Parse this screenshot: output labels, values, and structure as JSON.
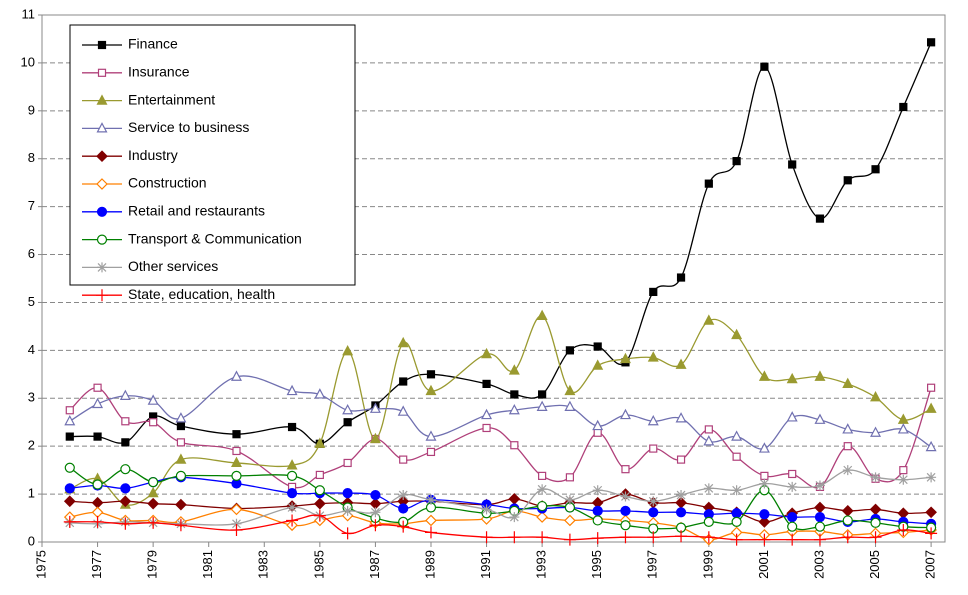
{
  "chart_data": {
    "type": "line",
    "x": [
      1976,
      1977,
      1978,
      1979,
      1980,
      1982,
      1984,
      1985,
      1986,
      1987,
      1988,
      1989,
      1991,
      1992,
      1993,
      1994,
      1995,
      1996,
      1997,
      1998,
      1999,
      2000,
      2001,
      2002,
      2003,
      2004,
      2005,
      2006,
      2007
    ],
    "xlim": [
      1975,
      2007.5
    ],
    "xticks": [
      1975,
      1977,
      1979,
      1981,
      1983,
      1985,
      1987,
      1989,
      1991,
      1993,
      1995,
      1997,
      1999,
      2001,
      2003,
      2005,
      2007
    ],
    "ylim": [
      0,
      11
    ],
    "yticks": [
      0,
      1,
      2,
      3,
      4,
      5,
      6,
      7,
      8,
      9,
      10,
      11
    ],
    "grid": true,
    "legend": "upper left",
    "series": [
      {
        "name": "Finance",
        "color": "#000000",
        "marker": "square",
        "filled": true,
        "values": [
          2.2,
          2.2,
          2.08,
          2.62,
          2.42,
          2.25,
          2.4,
          2.05,
          2.5,
          2.85,
          3.35,
          3.5,
          3.3,
          3.08,
          3.08,
          4.0,
          4.08,
          3.75,
          5.22,
          5.52,
          7.48,
          7.95,
          9.92,
          7.88,
          6.75,
          7.55,
          7.78,
          9.08,
          10.43
        ]
      },
      {
        "name": "Insurance",
        "color": "#b0407a",
        "marker": "square",
        "filled": false,
        "values": [
          2.75,
          3.22,
          2.52,
          2.5,
          2.08,
          1.9,
          1.15,
          1.4,
          1.65,
          2.15,
          1.72,
          1.88,
          2.38,
          2.02,
          1.38,
          1.35,
          2.28,
          1.52,
          1.95,
          1.72,
          2.35,
          1.78,
          1.38,
          1.42,
          1.15,
          2.0,
          1.32,
          1.5,
          3.22
        ]
      },
      {
        "name": "Entertainment",
        "color": "#9a9a30",
        "marker": "triangle",
        "filled": true,
        "values": [
          1.1,
          1.32,
          0.78,
          1.02,
          1.72,
          1.65,
          1.6,
          2.05,
          3.98,
          2.15,
          4.15,
          3.15,
          3.92,
          3.58,
          4.72,
          3.15,
          3.68,
          3.82,
          3.85,
          3.7,
          4.62,
          4.32,
          3.45,
          3.4,
          3.45,
          3.3,
          3.02,
          2.55,
          2.78
        ]
      },
      {
        "name": "Service to business",
        "color": "#7070b0",
        "marker": "triangle",
        "filled": false,
        "values": [
          2.52,
          2.88,
          3.05,
          2.95,
          2.58,
          3.45,
          3.15,
          3.08,
          2.75,
          2.78,
          2.72,
          2.2,
          2.65,
          2.75,
          2.82,
          2.82,
          2.42,
          2.65,
          2.52,
          2.58,
          2.1,
          2.2,
          1.95,
          2.6,
          2.55,
          2.35,
          2.28,
          2.35,
          1.98
        ]
      },
      {
        "name": "Industry",
        "color": "#800000",
        "marker": "diamond",
        "filled": true,
        "values": [
          0.85,
          0.82,
          0.85,
          0.8,
          0.78,
          0.7,
          0.75,
          0.8,
          0.82,
          0.8,
          0.85,
          0.85,
          0.78,
          0.9,
          0.75,
          0.82,
          0.82,
          1.0,
          0.82,
          0.82,
          0.72,
          0.62,
          0.42,
          0.6,
          0.72,
          0.65,
          0.68,
          0.6,
          0.62
        ]
      },
      {
        "name": "Construction",
        "color": "#ff8000",
        "marker": "diamond",
        "filled": false,
        "values": [
          0.52,
          0.62,
          0.45,
          0.45,
          0.42,
          0.68,
          0.35,
          0.45,
          0.55,
          0.4,
          0.38,
          0.45,
          0.48,
          0.65,
          0.52,
          0.45,
          0.48,
          0.45,
          0.4,
          0.3,
          0.05,
          0.2,
          0.15,
          0.22,
          0.22,
          0.15,
          0.18,
          0.2,
          0.25
        ]
      },
      {
        "name": "Retail and restaurants",
        "color": "#0000ff",
        "marker": "circle",
        "filled": true,
        "values": [
          1.12,
          1.18,
          1.12,
          1.25,
          1.35,
          1.22,
          1.02,
          1.02,
          1.02,
          0.98,
          0.7,
          0.88,
          0.78,
          0.7,
          0.7,
          0.72,
          0.65,
          0.65,
          0.62,
          0.62,
          0.58,
          0.6,
          0.58,
          0.52,
          0.52,
          0.42,
          0.48,
          0.42,
          0.38
        ]
      },
      {
        "name": "Transport & Communication",
        "color": "#008000",
        "marker": "circle",
        "filled": false,
        "values": [
          1.55,
          1.2,
          1.52,
          1.25,
          1.38,
          1.38,
          1.38,
          1.08,
          0.72,
          0.5,
          0.42,
          0.72,
          0.6,
          0.65,
          0.75,
          0.72,
          0.45,
          0.35,
          0.28,
          0.3,
          0.42,
          0.42,
          1.08,
          0.32,
          0.32,
          0.45,
          0.4,
          0.32,
          0.3
        ]
      },
      {
        "name": "Other services",
        "color": "#a0a0a0",
        "marker": "star",
        "filled": false,
        "values": [
          0.4,
          0.38,
          0.42,
          0.4,
          0.38,
          0.38,
          0.72,
          0.55,
          0.65,
          0.62,
          0.98,
          0.88,
          0.68,
          0.52,
          1.1,
          0.88,
          1.08,
          0.95,
          0.85,
          0.98,
          1.12,
          1.08,
          1.22,
          1.15,
          1.18,
          1.5,
          1.35,
          1.3,
          1.35
        ]
      },
      {
        "name": "State, education, health",
        "color": "#ff0000",
        "marker": "plus",
        "filled": false,
        "values": [
          0.42,
          0.42,
          0.38,
          0.4,
          0.35,
          0.25,
          0.45,
          0.55,
          0.18,
          0.35,
          0.32,
          0.2,
          0.1,
          0.1,
          0.1,
          0.05,
          0.08,
          0.1,
          0.1,
          0.12,
          0.1,
          0.05,
          0.05,
          0.05,
          0.05,
          0.1,
          0.1,
          0.25,
          0.18
        ]
      }
    ]
  }
}
